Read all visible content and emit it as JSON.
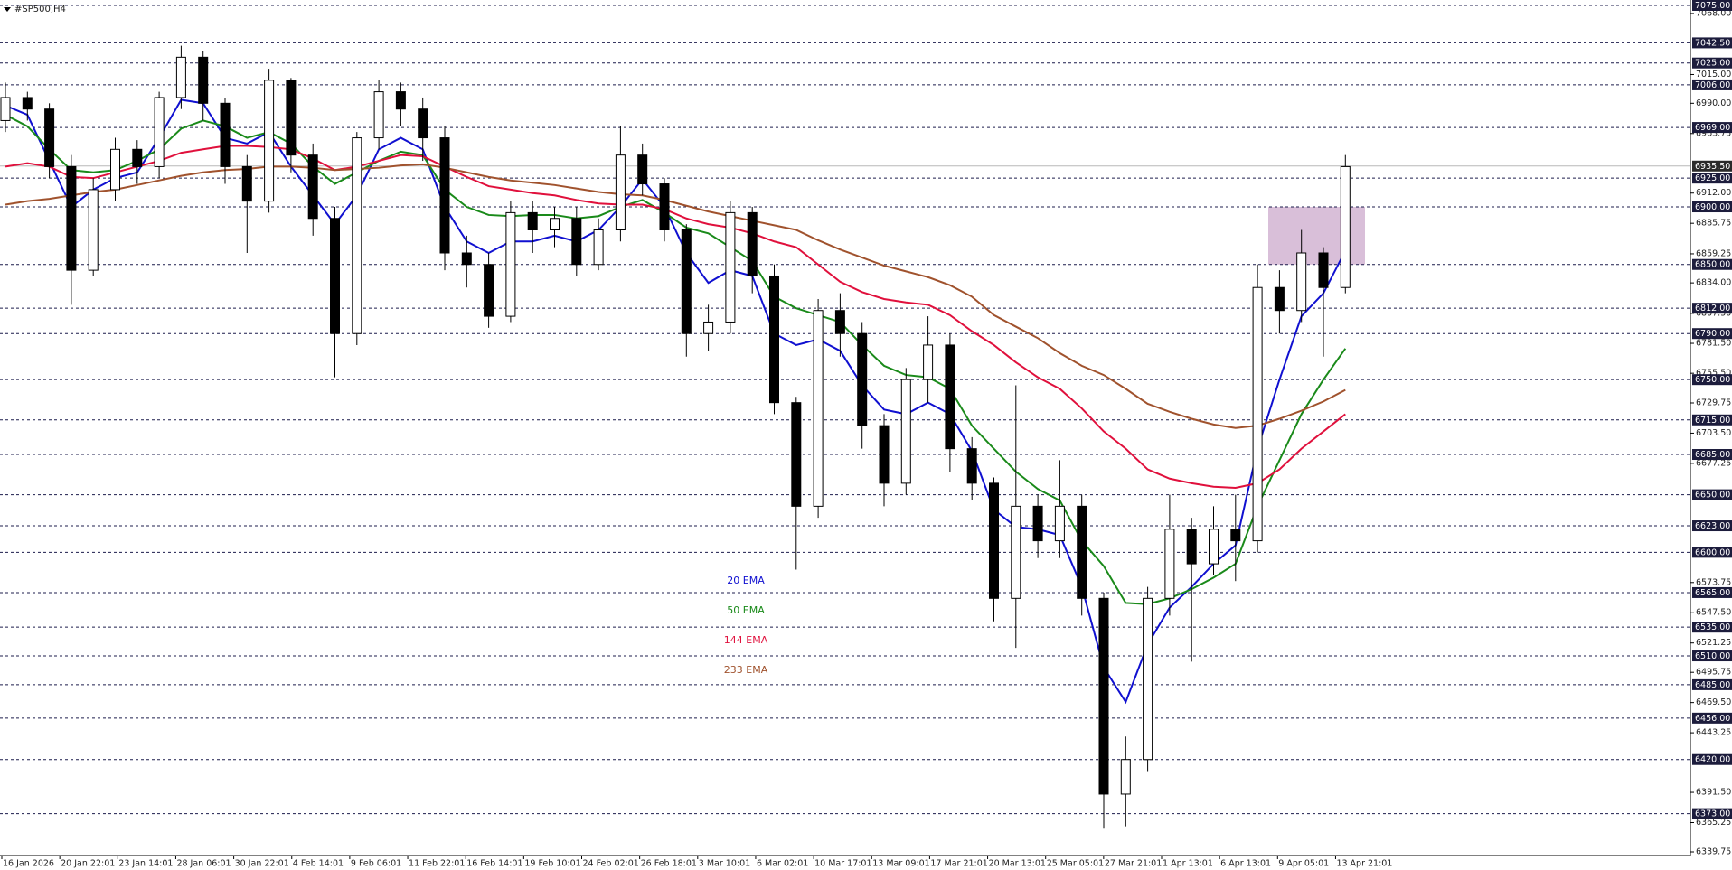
{
  "chart_data": {
    "type": "candlestick",
    "title": "#SP500,H4",
    "ylim": [
      6339.75,
      7075
    ],
    "yticks": [
      {
        "value": 7068,
        "label": "7068.00"
      },
      {
        "value": 7015,
        "label": "7015.00"
      },
      {
        "value": 6990,
        "label": "6990.00"
      },
      {
        "value": 6963.75,
        "label": "6963.75"
      },
      {
        "value": 6912,
        "label": "6912.00"
      },
      {
        "value": 6885.75,
        "label": "6885.75"
      },
      {
        "value": 6859.25,
        "label": "6859.25"
      },
      {
        "value": 6834,
        "label": "6834.00"
      },
      {
        "value": 6807.5,
        "label": "6807.50"
      },
      {
        "value": 6781.5,
        "label": "6781.50"
      },
      {
        "value": 6755.5,
        "label": "6755.50"
      },
      {
        "value": 6729.75,
        "label": "6729.75"
      },
      {
        "value": 6703.5,
        "label": "6703.50"
      },
      {
        "value": 6677.25,
        "label": "6677.25"
      },
      {
        "value": 6573.75,
        "label": "6573.75"
      },
      {
        "value": 6547.5,
        "label": "6547.50"
      },
      {
        "value": 6521.25,
        "label": "6521.25"
      },
      {
        "value": 6495.75,
        "label": "6495.75"
      },
      {
        "value": 6469.5,
        "label": "6469.50"
      },
      {
        "value": 6443.25,
        "label": "6443.25"
      },
      {
        "value": 6391.5,
        "label": "6391.50"
      },
      {
        "value": 6365.25,
        "label": "6365.25"
      },
      {
        "value": 6339.75,
        "label": "6339.75"
      }
    ],
    "levels": [
      {
        "value": 7075,
        "label": "7075.00"
      },
      {
        "value": 7042.5,
        "label": "7042.50"
      },
      {
        "value": 7025,
        "label": "7025.00"
      },
      {
        "value": 7006,
        "label": "7006.00"
      },
      {
        "value": 6969,
        "label": "6969.00"
      },
      {
        "value": 6925,
        "label": "6925.00"
      },
      {
        "value": 6900,
        "label": "6900.00"
      },
      {
        "value": 6850,
        "label": "6850.00"
      },
      {
        "value": 6812,
        "label": "6812.00"
      },
      {
        "value": 6790,
        "label": "6790.00"
      },
      {
        "value": 6750,
        "label": "6750.00"
      },
      {
        "value": 6715,
        "label": "6715.00"
      },
      {
        "value": 6685,
        "label": "6685.00"
      },
      {
        "value": 6650,
        "label": "6650.00"
      },
      {
        "value": 6623,
        "label": "6623.00"
      },
      {
        "value": 6600,
        "label": "6600.00"
      },
      {
        "value": 6565,
        "label": "6565.00"
      },
      {
        "value": 6535,
        "label": "6535.00"
      },
      {
        "value": 6510,
        "label": "6510.00"
      },
      {
        "value": 6485,
        "label": "6485.00"
      },
      {
        "value": 6456,
        "label": "6456.00"
      },
      {
        "value": 6420,
        "label": "6420.00"
      },
      {
        "value": 6373,
        "label": "6373.00"
      }
    ],
    "last_price": {
      "value": 6935.5,
      "label": "6935.50"
    },
    "zone": [
      6850,
      6900
    ],
    "zone_color": "#d9bfd9",
    "x_labels": [
      "16 Jan 2026",
      "20 Jan 22:01",
      "23 Jan 14:01",
      "28 Jan 06:01",
      "30 Jan 22:01",
      "4 Feb 14:01",
      "9 Feb 06:01",
      "11 Feb 22:01",
      "16 Feb 14:01",
      "19 Feb 10:01",
      "24 Feb 02:01",
      "26 Feb 18:01",
      "3 Mar 10:01",
      "6 Mar 02:01",
      "10 Mar 17:01",
      "13 Mar 09:01",
      "17 Mar 21:01",
      "20 Mar 13:01",
      "25 Mar 05:01",
      "27 Mar 21:01",
      "1 Apr 13:01",
      "6 Apr 13:01",
      "9 Apr 05:01",
      "13 Apr 21:01"
    ],
    "open": [
      6975,
      6995,
      6985,
      6935,
      6845,
      6915,
      6950,
      6935,
      6995,
      7030,
      6990,
      6935,
      6905,
      7010,
      6945,
      6890,
      6790,
      6960,
      7000,
      6985,
      6960,
      6860,
      6850,
      6805,
      6895,
      6880,
      6890,
      6850,
      6880,
      6945,
      6920,
      6880,
      6790,
      6800,
      6895,
      6840,
      6730,
      6640,
      6810,
      6790,
      6710,
      6660,
      6750,
      6780,
      6690,
      6660,
      6560,
      6640,
      6610,
      6640,
      6560,
      6390,
      6420,
      6560,
      6620,
      6590,
      6620,
      6610,
      6830,
      6810,
      6860,
      6830
    ],
    "high": [
      7008,
      7000,
      6990,
      6945,
      6925,
      6960,
      6958,
      7000,
      7040,
      7035,
      6995,
      6945,
      7020,
      7012,
      6955,
      6900,
      6965,
      7010,
      7008,
      6995,
      6970,
      6875,
      6860,
      6905,
      6905,
      6900,
      6900,
      6890,
      6970,
      6955,
      6925,
      6885,
      6815,
      6905,
      6900,
      6850,
      6735,
      6820,
      6825,
      6800,
      6720,
      6760,
      6805,
      6790,
      6700,
      6665,
      6745,
      6650,
      6680,
      6650,
      6565,
      6440,
      6570,
      6650,
      6630,
      6640,
      6650,
      6850,
      6845,
      6880,
      6865,
      6945
    ],
    "low": [
      6965,
      6975,
      6925,
      6815,
      6840,
      6905,
      6920,
      6925,
      6985,
      6975,
      6920,
      6860,
      6895,
      6930,
      6875,
      6752,
      6780,
      6950,
      6970,
      6940,
      6845,
      6830,
      6795,
      6800,
      6860,
      6865,
      6840,
      6845,
      6870,
      6910,
      6870,
      6770,
      6775,
      6790,
      6825,
      6720,
      6585,
      6630,
      6770,
      6690,
      6640,
      6650,
      6730,
      6670,
      6645,
      6540,
      6517,
      6595,
      6595,
      6545,
      6360,
      6362,
      6410,
      6545,
      6505,
      6580,
      6575,
      6600,
      6790,
      6800,
      6770,
      6825
    ],
    "close": [
      6995,
      6985,
      6935,
      6845,
      6915,
      6950,
      6935,
      6995,
      7030,
      6990,
      6935,
      6905,
      7010,
      6945,
      6890,
      6790,
      6960,
      7000,
      6985,
      6960,
      6860,
      6850,
      6805,
      6895,
      6880,
      6890,
      6850,
      6880,
      6945,
      6920,
      6880,
      6790,
      6800,
      6895,
      6840,
      6730,
      6640,
      6810,
      6790,
      6710,
      6660,
      6750,
      6780,
      6690,
      6660,
      6560,
      6640,
      6610,
      6640,
      6560,
      6390,
      6420,
      6560,
      6620,
      6590,
      6620,
      6610,
      6830,
      6810,
      6860,
      6830,
      6935
    ],
    "series": [
      {
        "name": "20 EMA",
        "color": "#1010d0",
        "values": [
          6988,
          6980,
          6940,
          6900,
          6915,
          6925,
          6930,
          6960,
          6993,
          6990,
          6960,
          6955,
          6965,
          6935,
          6910,
          6885,
          6910,
          6950,
          6960,
          6950,
          6900,
          6870,
          6860,
          6870,
          6870,
          6875,
          6870,
          6880,
          6900,
          6924,
          6900,
          6860,
          6834,
          6845,
          6840,
          6790,
          6780,
          6785,
          6775,
          6745,
          6724,
          6720,
          6730,
          6720,
          6688,
          6637,
          6622,
          6620,
          6615,
          6570,
          6500,
          6470,
          6520,
          6552,
          6570,
          6590,
          6606,
          6690,
          6750,
          6805,
          6825,
          6862
        ]
      },
      {
        "name": "50 EMA",
        "color": "#1a8a1a",
        "values": [
          6980,
          6970,
          6950,
          6932,
          6930,
          6932,
          6940,
          6950,
          6968,
          6975,
          6970,
          6960,
          6965,
          6955,
          6935,
          6920,
          6930,
          6940,
          6948,
          6945,
          6915,
          6900,
          6893,
          6892,
          6893,
          6893,
          6890,
          6892,
          6900,
          6906,
          6895,
          6882,
          6877,
          6865,
          6853,
          6822,
          6812,
          6806,
          6800,
          6780,
          6762,
          6754,
          6752,
          6742,
          6710,
          6690,
          6670,
          6655,
          6645,
          6610,
          6588,
          6556,
          6555,
          6560,
          6568,
          6578,
          6590,
          6640,
          6680,
          6720,
          6750,
          6777
        ]
      },
      {
        "name": "144 EMA",
        "color": "#e0103c",
        "values": [
          6935,
          6938,
          6935,
          6926,
          6925,
          6930,
          6935,
          6940,
          6947,
          6950,
          6953,
          6953,
          6952,
          6950,
          6942,
          6932,
          6935,
          6940,
          6945,
          6944,
          6935,
          6926,
          6918,
          6915,
          6912,
          6910,
          6906,
          6903,
          6902,
          6902,
          6898,
          6890,
          6885,
          6882,
          6877,
          6870,
          6865,
          6850,
          6835,
          6826,
          6820,
          6817,
          6815,
          6806,
          6792,
          6780,
          6765,
          6752,
          6742,
          6725,
          6705,
          6690,
          6672,
          6664,
          6660,
          6657,
          6656,
          6660,
          6672,
          6690,
          6705,
          6720
        ]
      },
      {
        "name": "233 EMA",
        "color": "#a0522d",
        "values": [
          6902,
          6905,
          6907,
          6910,
          6913,
          6915,
          6919,
          6923,
          6927,
          6930,
          6932,
          6933,
          6935,
          6935,
          6934,
          6932,
          6933,
          6934,
          6936,
          6937,
          6934,
          6930,
          6926,
          6923,
          6921,
          6919,
          6916,
          6913,
          6911,
          6910,
          6906,
          6901,
          6896,
          6892,
          6888,
          6884,
          6880,
          6871,
          6863,
          6856,
          6849,
          6844,
          6839,
          6832,
          6822,
          6806,
          6796,
          6786,
          6773,
          6762,
          6754,
          6742,
          6729,
          6722,
          6716,
          6711,
          6708,
          6710,
          6716,
          6723,
          6731,
          6741
        ]
      }
    ]
  }
}
